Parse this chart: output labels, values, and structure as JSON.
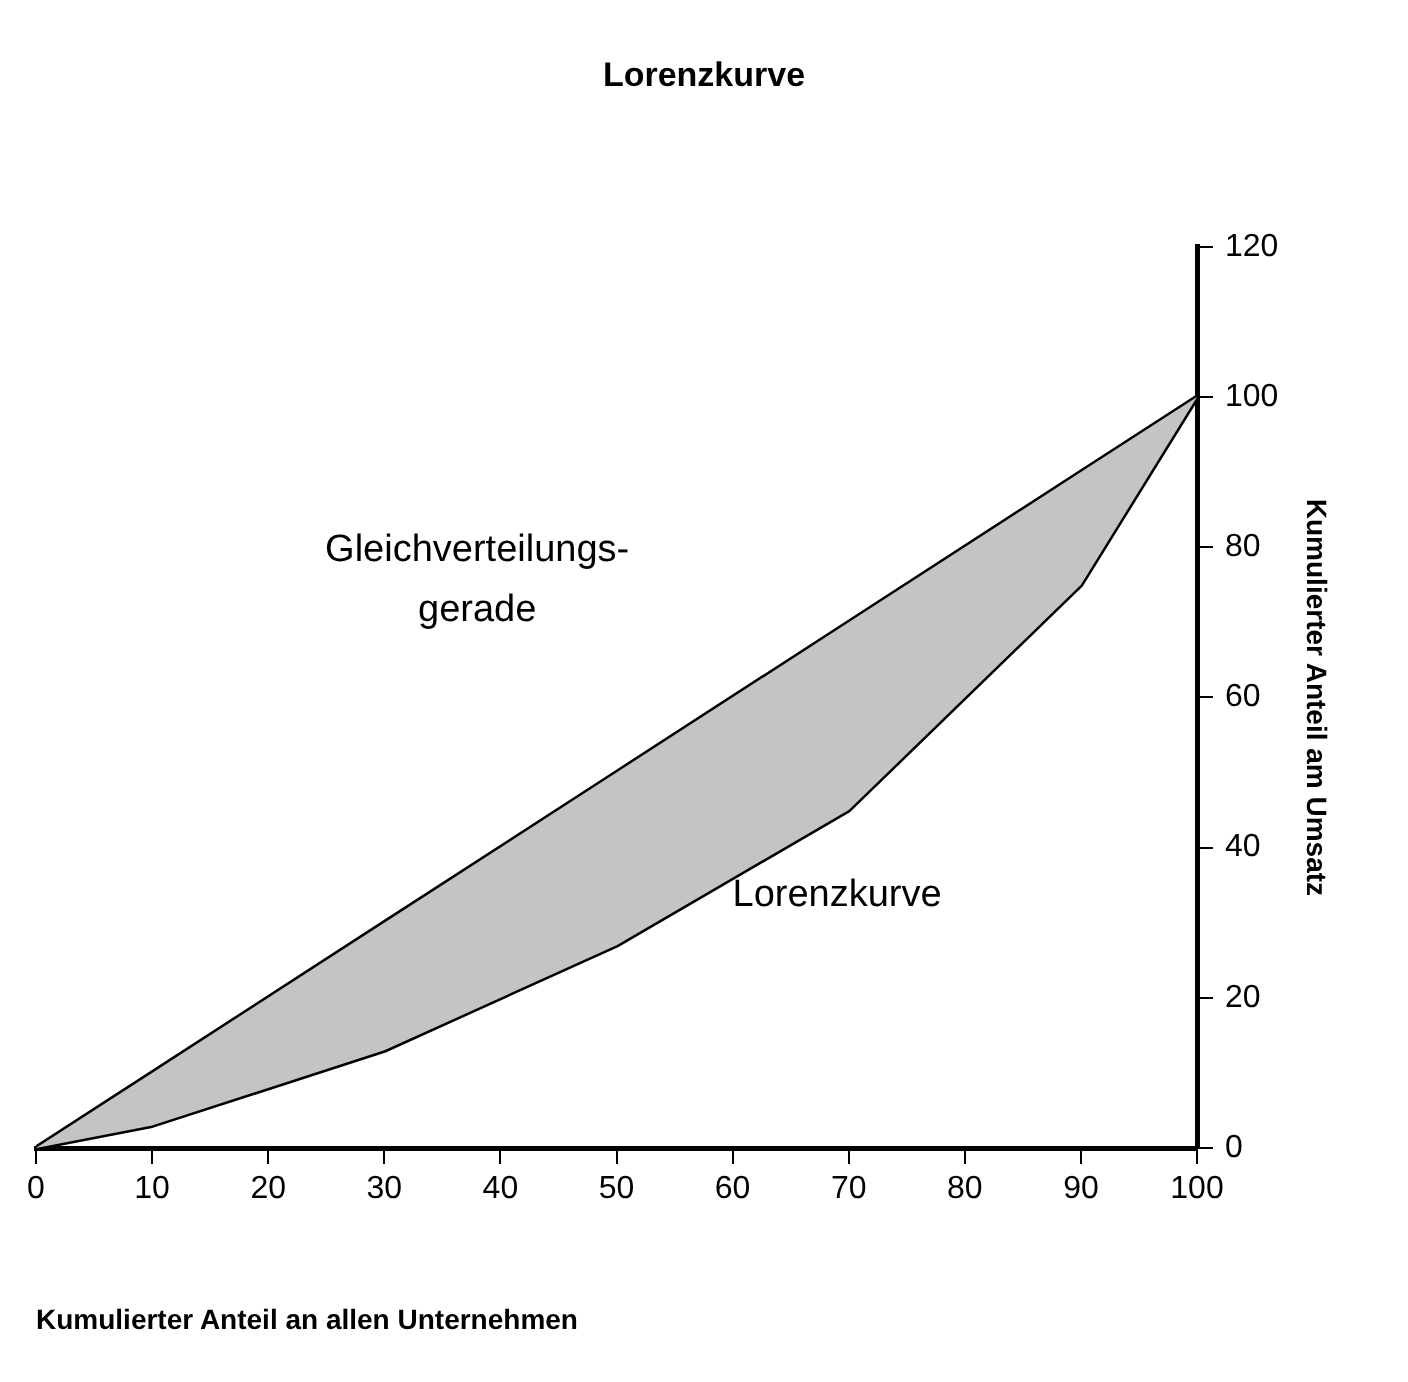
{
  "chart_data": {
    "type": "line",
    "title": "Lorenzkurve",
    "xlabel": "Kumulierter Anteil an allen Unternehmen",
    "ylabel": "Kumulierter Anteil am Umsatz",
    "series": [
      {
        "color": "#000000",
        "x": [
          0,
          10,
          30,
          50,
          70,
          90,
          100
        ],
        "values": [
          0,
          10,
          30,
          50,
          70,
          90,
          100
        ],
        "lower": [
          0,
          3,
          13,
          27,
          45,
          75,
          100
        ],
        "upper": [
          0,
          10,
          30,
          50,
          70,
          90,
          100
        ]
      },
      {
        "color": "#000000",
        "x": [
          0,
          10,
          30,
          50,
          70,
          90,
          100
        ],
        "values": [
          0,
          3,
          13,
          27,
          45,
          75,
          100
        ]
      }
    ],
    "xlim": [
      0,
      100
    ],
    "xticks": [
      0,
      10,
      20,
      30,
      40,
      50,
      60,
      70,
      80,
      90,
      100
    ],
    "ylim": [
      0,
      120
    ],
    "yticks": [
      0,
      20,
      40,
      60,
      80,
      100,
      120
    ],
    "grid": false,
    "legend": false,
    "marker": "none",
    "line_style": "solid",
    "annotations": [
      "Gleichverteilungs-\ngerade",
      "Lorenzkurve"
    ]
  }
}
